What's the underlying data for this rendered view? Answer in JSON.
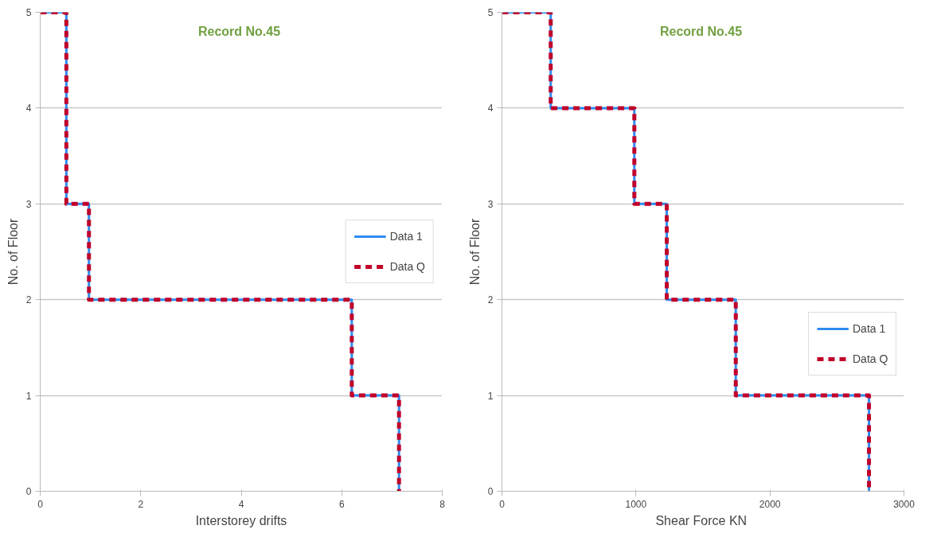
{
  "chart_data": [
    {
      "type": "line",
      "annotations": [
        "Record No.45"
      ],
      "xlabel": "Interstorey drifts",
      "ylabel": "No. of Floor",
      "xlim": [
        0,
        8
      ],
      "xticks": [
        0,
        2,
        4,
        6,
        8
      ],
      "ylim": [
        0,
        5
      ],
      "yticks": [
        0,
        1,
        2,
        3,
        4,
        5
      ],
      "grid": "y",
      "legend": "right",
      "marker": "none",
      "series": [
        {
          "name": "Data 1",
          "color": "#2e8bf0",
          "line_style": "solid",
          "x": [
            0,
            0.52,
            0.52,
            0.97,
            0.97,
            6.2,
            6.2,
            7.14,
            7.14
          ],
          "values": [
            5,
            5,
            3,
            3,
            2,
            2,
            1,
            1,
            0
          ]
        },
        {
          "name": "Data Q",
          "color": "#c0002a",
          "line_style": "dashed",
          "x": [
            0,
            0.52,
            0.52,
            0.97,
            0.97,
            6.2,
            6.2,
            7.14,
            7.14
          ],
          "values": [
            5,
            5,
            3,
            3,
            2,
            2,
            1,
            1,
            0
          ]
        }
      ]
    },
    {
      "type": "line",
      "annotations": [
        "Record No.45"
      ],
      "xlabel": "Shear Force  KN",
      "ylabel": "No. of Floor",
      "xlim": [
        0,
        3000
      ],
      "xticks": [
        0,
        1000,
        2000,
        3000
      ],
      "ylim": [
        0,
        5
      ],
      "yticks": [
        0,
        1,
        2,
        3,
        4,
        5
      ],
      "grid": "y",
      "legend": "bottom right",
      "marker": "none",
      "series": [
        {
          "name": "Data 1",
          "color": "#2e8bf0",
          "line_style": "solid",
          "x": [
            0,
            364,
            364,
            988,
            988,
            1230,
            1230,
            1745,
            1745,
            2739,
            2739
          ],
          "values": [
            5,
            5,
            4,
            4,
            3,
            3,
            2,
            2,
            1,
            1,
            0
          ]
        },
        {
          "name": "Data Q",
          "color": "#c0002a",
          "line_style": "dashed",
          "x": [
            0,
            364,
            364,
            988,
            988,
            1230,
            1230,
            1745,
            1745,
            2739,
            2739
          ],
          "values": [
            5,
            5,
            4,
            4,
            3,
            3,
            2,
            2,
            1,
            1,
            0
          ]
        }
      ]
    }
  ]
}
